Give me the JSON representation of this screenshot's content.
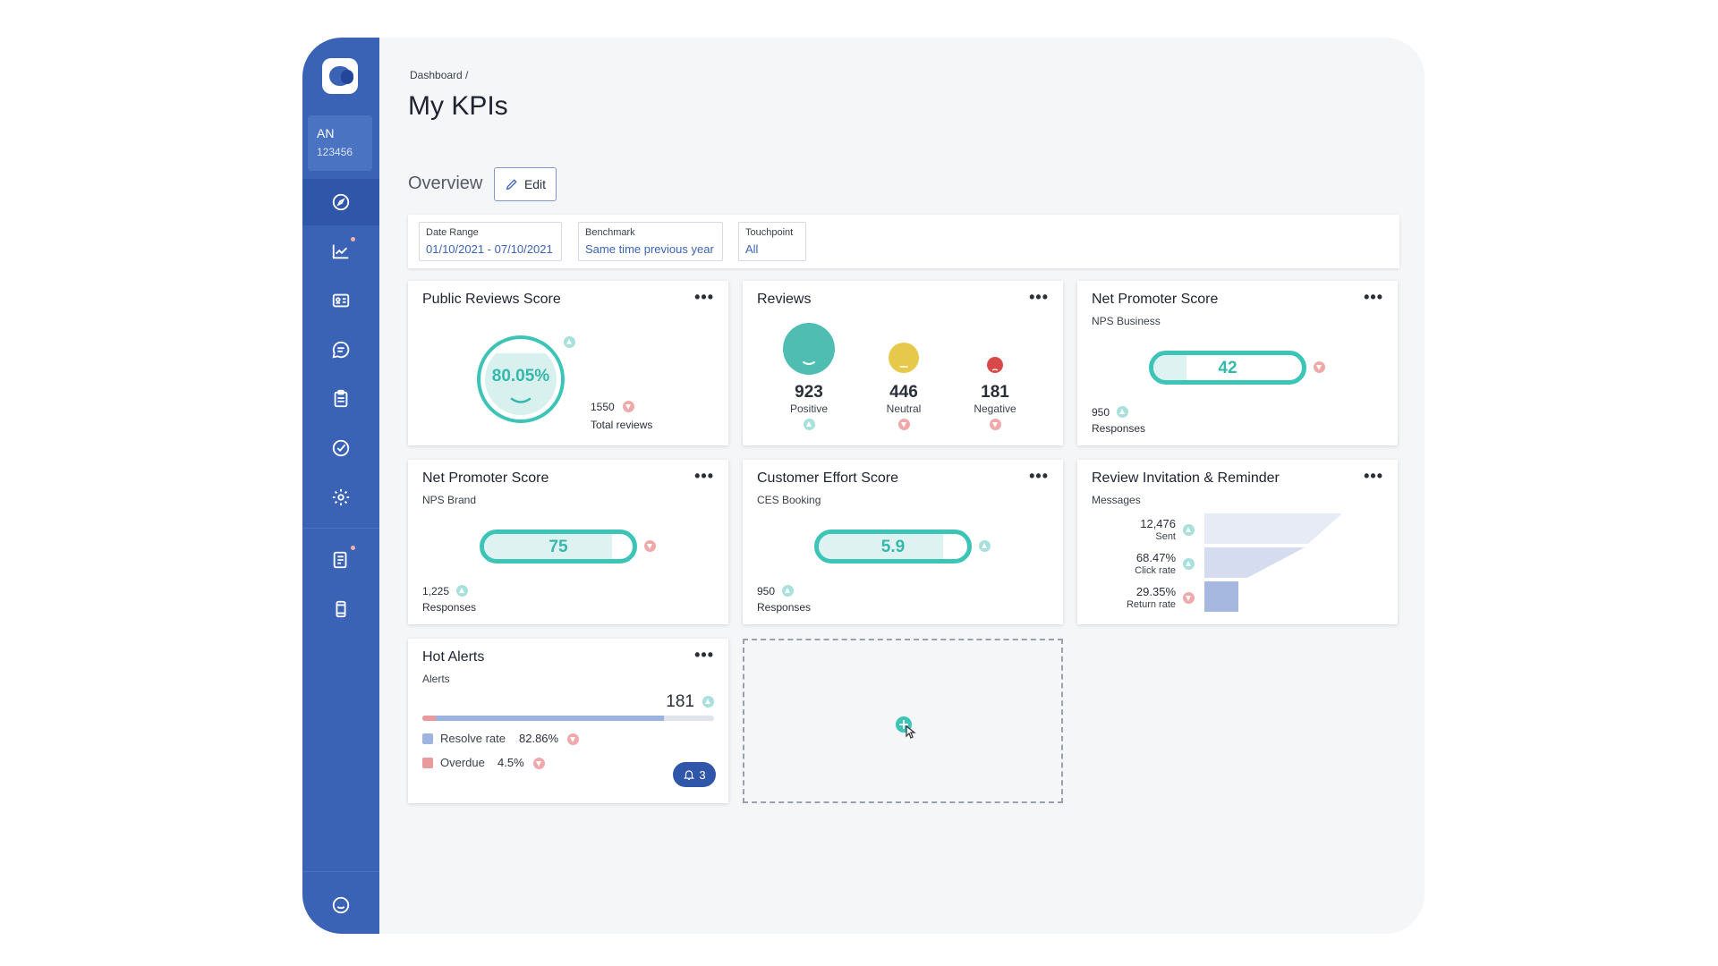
{
  "user": {
    "initials": "AN",
    "id": "123456"
  },
  "breadcrumb": "Dashboard  /",
  "page_title": "My KPIs",
  "overview": {
    "label": "Overview",
    "edit_label": "Edit"
  },
  "filters": [
    {
      "label": "Date Range",
      "value": "01/10/2021 - 07/10/2021"
    },
    {
      "label": "Benchmark",
      "value": "Same time previous year"
    },
    {
      "label": "Touchpoint",
      "value": "All"
    }
  ],
  "cards": {
    "public_reviews": {
      "title": "Public Reviews Score",
      "score": "80.05%",
      "total": "1550",
      "total_label": "Total reviews"
    },
    "reviews": {
      "title": "Reviews",
      "items": [
        {
          "value": "923",
          "label": "Positive"
        },
        {
          "value": "446",
          "label": "Neutral"
        },
        {
          "value": "181",
          "label": "Negative"
        }
      ]
    },
    "nps_business": {
      "title": "Net Promoter Score",
      "subtitle": "NPS Business",
      "value": "42",
      "fill_fraction": 0.22,
      "responses": "950",
      "responses_label": "Responses"
    },
    "nps_brand": {
      "title": "Net Promoter Score",
      "subtitle": "NPS Brand",
      "value": "75",
      "fill_fraction": 0.86,
      "responses": "1,225",
      "responses_label": "Responses"
    },
    "ces": {
      "title": "Customer Effort Score",
      "subtitle": "CES Booking",
      "value": "5.9",
      "fill_fraction": 0.84,
      "responses": "950",
      "responses_label": "Responses"
    },
    "review_invitation": {
      "title": "Review Invitation & Reminder",
      "subtitle": "Messages",
      "rows": [
        {
          "value": "12,476",
          "label": "Sent"
        },
        {
          "value": "68.47%",
          "label": "Click rate"
        },
        {
          "value": "29.35%",
          "label": "Return rate"
        }
      ]
    },
    "hot_alerts": {
      "title": "Hot Alerts",
      "subtitle": "Alerts",
      "total": "181",
      "resolve_label": "Resolve rate",
      "resolve_value": "82.86%",
      "overdue_label": "Overdue",
      "overdue_value": "4.5%",
      "resolve_fraction": 0.8286,
      "overdue_fraction": 0.045,
      "notification_count": "3"
    }
  },
  "more_label": "•••",
  "colors": {
    "sidebar": "#3b63b5",
    "teal": "#3cc4b6",
    "neutral": "#e6c84a",
    "negative": "#d84a4a",
    "resolve": "#9db4e0",
    "overdue": "#e89a9c"
  }
}
